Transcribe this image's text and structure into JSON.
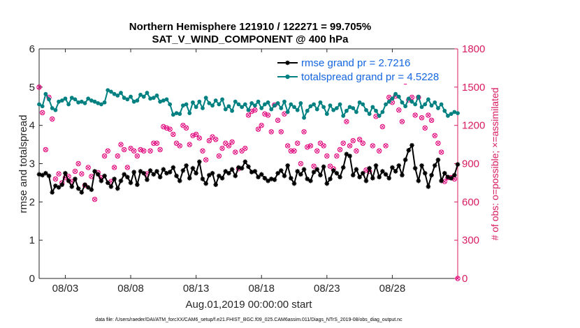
{
  "chart_data": {
    "type": "line",
    "title": "Northern Hemisphere 121910 / 122271 = 99.705%",
    "subtitle": "SAT_V_WIND_COMPONENT @ 400 hPa",
    "xlabel": "Aug.01,2019 00:00:00 start",
    "ylabel": "rmse and totalspread",
    "ylabel_right": "# of obs: o=possible; ×=assimilated",
    "xlim": [
      1.0,
      33.0
    ],
    "ylim": [
      0,
      6
    ],
    "ylim_right": [
      0,
      1800
    ],
    "x_ticks": [
      {
        "value": 3,
        "label": "08/03"
      },
      {
        "value": 8,
        "label": "08/08"
      },
      {
        "value": 13,
        "label": "08/13"
      },
      {
        "value": 18,
        "label": "08/18"
      },
      {
        "value": 23,
        "label": "08/23"
      },
      {
        "value": 28,
        "label": "08/28"
      }
    ],
    "y_ticks": [
      "0",
      "1",
      "2",
      "3",
      "4",
      "5",
      "6"
    ],
    "y_ticks_right": [
      "0",
      "300",
      "600",
      "900",
      "1200",
      "1500",
      "1800"
    ],
    "legend_position": "top-right",
    "series": [
      {
        "name": "rmse grand pr = 2.7216",
        "color": "#000000",
        "marker": "star",
        "x_start": 1.0,
        "x_step": 0.25,
        "values": [
          2.72,
          2.7,
          2.75,
          2.68,
          2.25,
          2.42,
          2.38,
          2.45,
          2.75,
          2.55,
          2.4,
          2.6,
          2.35,
          2.25,
          2.45,
          2.38,
          2.32,
          2.8,
          2.72,
          2.55,
          2.68,
          2.5,
          2.4,
          2.6,
          2.35,
          2.55,
          2.72,
          2.65,
          2.5,
          2.78,
          2.45,
          2.8,
          2.75,
          2.58,
          2.82,
          2.72,
          2.8,
          2.65,
          2.85,
          2.75,
          2.78,
          2.9,
          2.68,
          2.55,
          2.82,
          2.95,
          2.62,
          2.88,
          2.75,
          3.05,
          2.6,
          2.48,
          2.7,
          2.75,
          2.45,
          2.68,
          2.62,
          2.8,
          2.75,
          2.85,
          2.68,
          2.9,
          2.88,
          3.05,
          2.92,
          2.78,
          2.8,
          2.65,
          2.72,
          2.62,
          2.55,
          2.6,
          2.58,
          2.75,
          2.82,
          2.68,
          2.95,
          2.62,
          2.48,
          2.8,
          2.72,
          2.85,
          2.6,
          2.55,
          2.78,
          2.85,
          2.7,
          2.92,
          2.48,
          2.6,
          2.82,
          2.75,
          2.65,
          2.9,
          3.25,
          3.2,
          2.7,
          2.85,
          2.65,
          2.75,
          2.55,
          2.88,
          2.62,
          2.95,
          2.65,
          2.8,
          2.72,
          2.62,
          2.9,
          2.8,
          2.95,
          2.7,
          3.1,
          3.35,
          3.48,
          2.88,
          2.55,
          2.95,
          2.75,
          2.4,
          2.7,
          2.95,
          3.1,
          2.55,
          2.75,
          2.65,
          2.62,
          2.7,
          2.98
        ]
      },
      {
        "name": "totalspread grand pr = 4.5228",
        "color": "#008080",
        "marker": "circle",
        "x_start": 1.0,
        "x_step": 0.25,
        "values": [
          4.55,
          4.5,
          4.82,
          4.68,
          4.45,
          4.4,
          4.62,
          4.65,
          4.7,
          4.55,
          4.72,
          4.68,
          4.6,
          4.62,
          4.58,
          4.7,
          4.65,
          4.62,
          4.58,
          4.55,
          4.6,
          4.92,
          4.88,
          4.82,
          4.78,
          4.85,
          4.72,
          4.68,
          4.75,
          4.62,
          4.65,
          4.8,
          4.75,
          4.85,
          4.7,
          4.72,
          4.78,
          4.62,
          4.65,
          4.68,
          4.55,
          4.28,
          4.32,
          4.3,
          4.52,
          4.55,
          4.32,
          4.6,
          4.48,
          4.62,
          4.45,
          4.72,
          4.58,
          4.52,
          4.65,
          4.55,
          4.68,
          4.42,
          4.5,
          4.38,
          4.62,
          4.55,
          4.48,
          4.55,
          4.4,
          4.58,
          4.52,
          4.62,
          4.45,
          4.55,
          4.6,
          4.42,
          4.52,
          4.58,
          4.45,
          4.62,
          4.35,
          4.55,
          4.48,
          4.4,
          4.58,
          4.2,
          4.38,
          4.5,
          4.55,
          4.42,
          4.6,
          4.48,
          4.3,
          4.52,
          4.4,
          4.45,
          4.55,
          4.25,
          4.38,
          4.48,
          4.45,
          4.35,
          4.6,
          4.55,
          4.4,
          4.3,
          4.48,
          4.38,
          4.25,
          4.35,
          4.55,
          4.62,
          4.7,
          4.82,
          4.75,
          4.6,
          4.5,
          4.7,
          4.62,
          4.55,
          4.75,
          4.48,
          4.55,
          4.68,
          4.52,
          4.6,
          4.45,
          4.55,
          4.38,
          4.25,
          4.3,
          4.35,
          4.32
        ]
      }
    ],
    "obs_series": {
      "name": "# of obs (right axis)",
      "color": "#e0007a",
      "x_start": 1.0,
      "x_step": 0.25,
      "possible": [
        1500,
        1300,
        1010,
        1420,
        1250,
        780,
        820,
        750,
        790,
        800,
        760,
        840,
        900,
        820,
        730,
        870,
        800,
        620,
        830,
        790,
        960,
        1000,
        760,
        870,
        960,
        1050,
        1010,
        870,
        1020,
        1000,
        960,
        1010,
        1000,
        820,
        1000,
        1060,
        1060,
        1010,
        1190,
        1180,
        1170,
        1130,
        1060,
        1040,
        1200,
        1180,
        1050,
        1120,
        1130,
        1100,
        1000,
        930,
        1080,
        1110,
        1090,
        960,
        1020,
        1060,
        1040,
        1070,
        990,
        860,
        1000,
        1020,
        1280,
        1310,
        1320,
        1170,
        1200,
        1290,
        1280,
        1150,
        1360,
        1240,
        1150,
        1290,
        1040,
        1000,
        1000,
        1060,
        900,
        1150,
        1030,
        1040,
        880,
        1000,
        1060,
        1040,
        960,
        880,
        860,
        960,
        1010,
        1060,
        1230,
        1040,
        1080,
        1000,
        1090,
        1060,
        850,
        840,
        1040,
        1270,
        1000,
        1190,
        1040,
        1420,
        1380,
        1430,
        1320,
        1230,
        1540,
        1400,
        1420,
        1280,
        1420,
        1260,
        1180,
        1280,
        1240,
        1120,
        1060,
        990,
        760,
        790,
        790,
        780,
        0
      ]
    }
  },
  "footer": "data file: /Users/raeder/DAI/ATM_forcXX/CAM6_setup/f.e21.FHIST_BGC.f09_025.CAM6assim.011/Diags_NTrS_2019-08/obs_diag_output.nc"
}
